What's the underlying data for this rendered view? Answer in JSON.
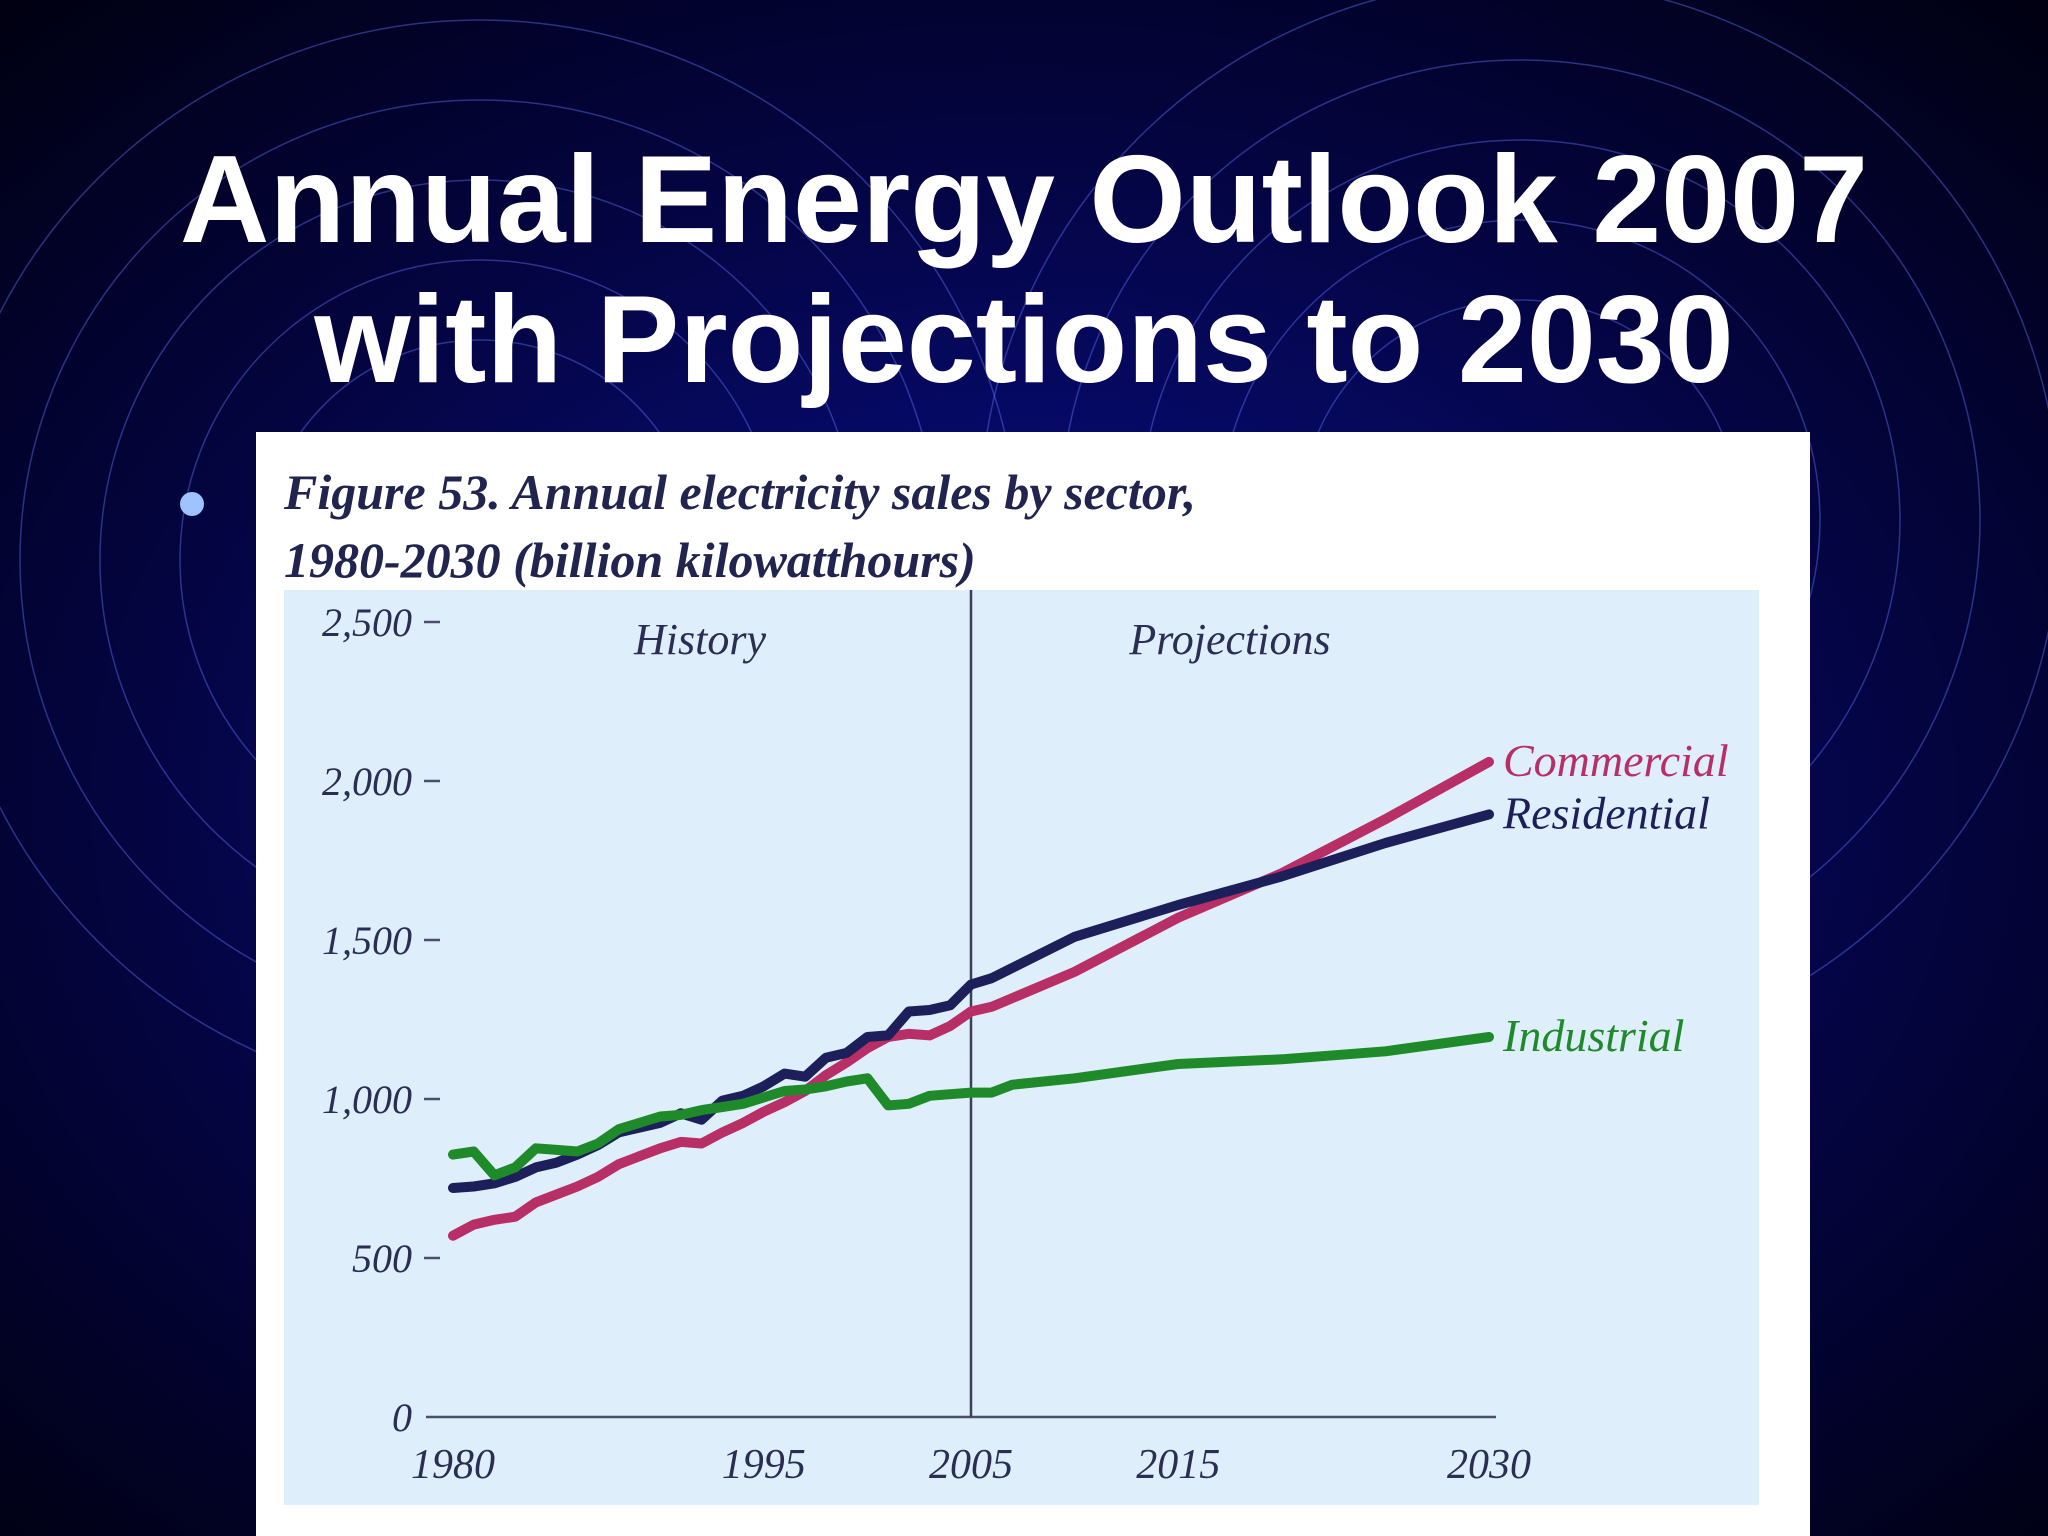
{
  "slide": {
    "title_line1": "Annual Energy Outlook 2007",
    "title_line2": "with Projections to 2030"
  },
  "figure": {
    "caption_line1": "Figure 53. Annual electricity sales by sector,",
    "caption_line2": "1980-2030 (billion kilowatthours)"
  },
  "colors": {
    "background": "#04054a",
    "plot_bg": "#dfeefb",
    "commercial": "#b82e66",
    "residential": "#1c1f5a",
    "industrial": "#1f8a2a",
    "axis": "#4a4f6a"
  },
  "chart_data": {
    "type": "line",
    "xlabel": "",
    "ylabel": "",
    "xlim": [
      1980,
      2030
    ],
    "ylim": [
      0,
      2500
    ],
    "x_ticks": [
      "1980",
      "1995",
      "2005",
      "2015",
      "2030"
    ],
    "y_ticks": [
      "0",
      "500",
      "1,000",
      "1,500",
      "2,000",
      "2,500"
    ],
    "regions": [
      {
        "label": "History",
        "from": 1980,
        "to": 2005
      },
      {
        "label": "Projections",
        "from": 2005,
        "to": 2030
      }
    ],
    "divider_x": 2005,
    "series": [
      {
        "name": "Commercial",
        "x": [
          1980,
          1981,
          1982,
          1983,
          1984,
          1985,
          1986,
          1987,
          1988,
          1989,
          1990,
          1991,
          1992,
          1993,
          1994,
          1995,
          1996,
          1997,
          1998,
          1999,
          2000,
          2001,
          2002,
          2003,
          2004,
          2005,
          2006,
          2010,
          2015,
          2020,
          2025,
          2030
        ],
        "y": [
          570,
          605,
          620,
          630,
          675,
          700,
          725,
          755,
          795,
          820,
          845,
          865,
          860,
          895,
          925,
          960,
          990,
          1025,
          1075,
          1115,
          1160,
          1195,
          1205,
          1200,
          1230,
          1275,
          1290,
          1400,
          1570,
          1710,
          1880,
          2060
        ]
      },
      {
        "name": "Residential",
        "x": [
          1980,
          1981,
          1982,
          1983,
          1984,
          1985,
          1986,
          1987,
          1988,
          1989,
          1990,
          1991,
          1992,
          1993,
          1994,
          1995,
          1996,
          1997,
          1998,
          1999,
          2000,
          2001,
          2002,
          2003,
          2004,
          2005,
          2006,
          2010,
          2015,
          2020,
          2025,
          2030
        ],
        "y": [
          720,
          725,
          735,
          755,
          785,
          800,
          825,
          855,
          895,
          910,
          925,
          955,
          935,
          995,
          1010,
          1040,
          1080,
          1070,
          1130,
          1145,
          1195,
          1200,
          1275,
          1280,
          1295,
          1360,
          1380,
          1510,
          1610,
          1700,
          1805,
          1895
        ]
      },
      {
        "name": "Industrial",
        "x": [
          1980,
          1981,
          1982,
          1983,
          1984,
          1985,
          1986,
          1987,
          1988,
          1989,
          1990,
          1991,
          1992,
          1993,
          1994,
          1995,
          1996,
          1997,
          1998,
          1999,
          2000,
          2001,
          2002,
          2003,
          2004,
          2005,
          2006,
          2007,
          2010,
          2015,
          2020,
          2025,
          2030
        ],
        "y": [
          825,
          835,
          760,
          785,
          845,
          840,
          835,
          860,
          905,
          925,
          945,
          950,
          965,
          975,
          985,
          1005,
          1025,
          1030,
          1040,
          1055,
          1065,
          980,
          985,
          1010,
          1015,
          1020,
          1020,
          1045,
          1065,
          1110,
          1125,
          1150,
          1195
        ]
      }
    ]
  }
}
